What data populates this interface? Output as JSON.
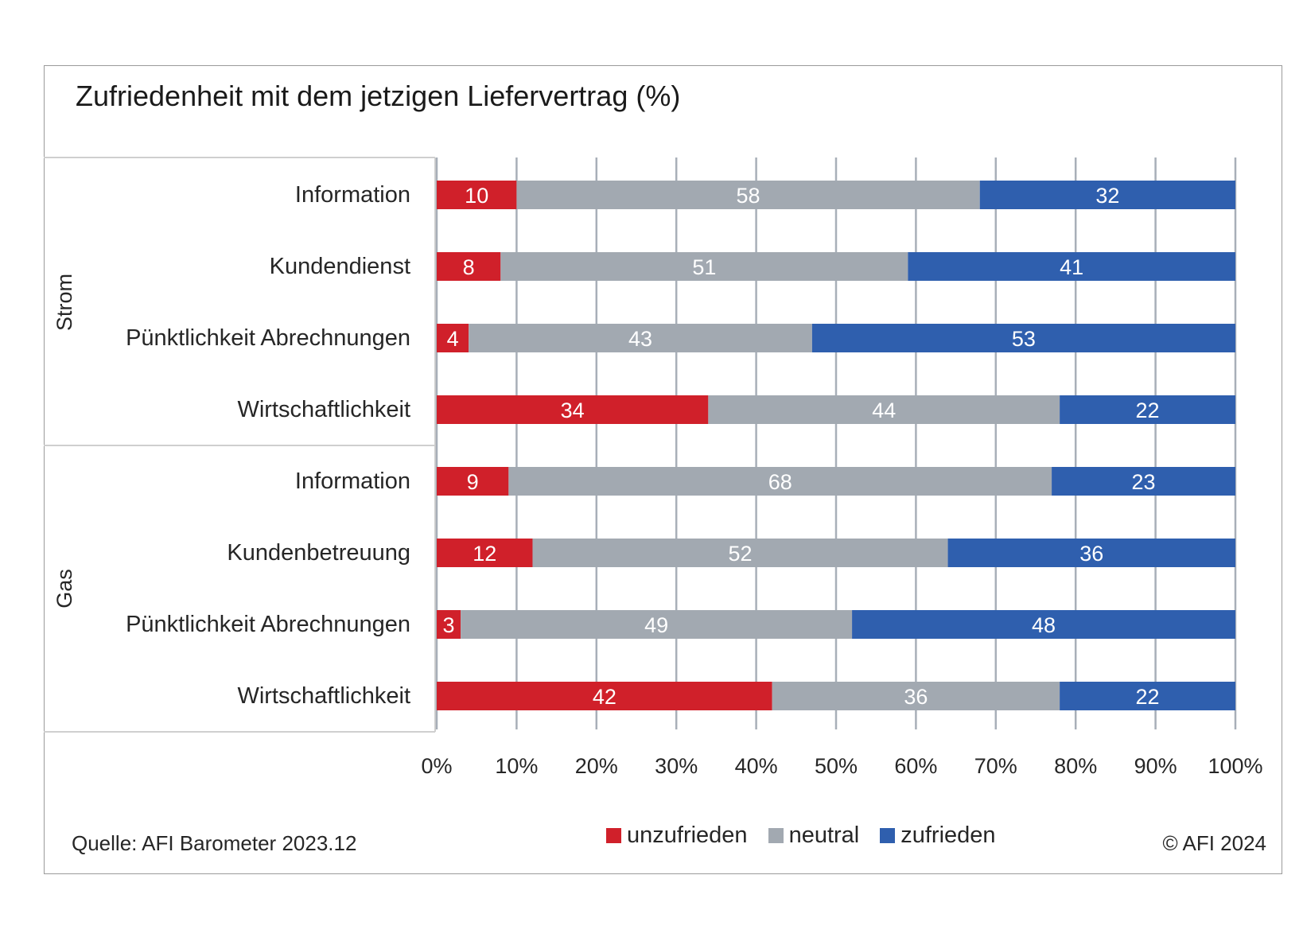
{
  "title": "Zufriedenheit mit dem jetzigen Liefervertrag (%)",
  "source": "Quelle: AFI Barometer 2023.12",
  "copyright": "© AFI 2024",
  "colors": {
    "unzufrieden": "#d0202a",
    "neutral": "#a2a9b1",
    "zufrieden": "#2f5fae",
    "grid": "#a8afb8"
  },
  "chart_data": {
    "type": "bar",
    "orientation": "horizontal",
    "stacked": true,
    "title": "Zufriedenheit mit dem jetzigen Liefervertrag (%)",
    "xlim": [
      0,
      100
    ],
    "x_ticks": [
      "0%",
      "10%",
      "20%",
      "30%",
      "40%",
      "50%",
      "60%",
      "70%",
      "80%",
      "90%",
      "100%"
    ],
    "grid": true,
    "legend_position": "bottom",
    "groups": [
      {
        "name": "Strom",
        "categories": [
          "Information",
          "Kundendienst",
          "Pünktlichkeit Abrechnungen",
          "Wirtschaftlichkeit"
        ]
      },
      {
        "name": "Gas",
        "categories": [
          "Information",
          "Kundenbetreuung",
          "Pünktlichkeit Abrechnungen",
          "Wirtschaftlichkeit"
        ]
      }
    ],
    "categories": [
      "Information",
      "Kundendienst",
      "Pünktlichkeit Abrechnungen",
      "Wirtschaftlichkeit",
      "Information",
      "Kundenbetreuung",
      "Pünktlichkeit Abrechnungen",
      "Wirtschaftlichkeit"
    ],
    "series": [
      {
        "name": "unzufrieden",
        "values": [
          10,
          8,
          4,
          34,
          9,
          12,
          3,
          42
        ]
      },
      {
        "name": "neutral",
        "values": [
          58,
          51,
          43,
          44,
          68,
          52,
          49,
          36
        ]
      },
      {
        "name": "zufrieden",
        "values": [
          32,
          41,
          53,
          22,
          23,
          36,
          48,
          22
        ]
      }
    ]
  }
}
